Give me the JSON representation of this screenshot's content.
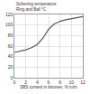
{
  "chart_data": {
    "type": "line",
    "y_label": "Softening temperature\nRing and Ball °C",
    "x_label": "SBS content in bitumen, % m/m",
    "x": [
      0,
      1,
      2,
      3,
      4,
      5,
      6,
      7,
      8,
      9,
      10,
      11,
      12
    ],
    "values": [
      48,
      50,
      53,
      57,
      63,
      75,
      92,
      102,
      107,
      110,
      112,
      114,
      116
    ],
    "color": "#555555",
    "xlim": [
      0,
      12
    ],
    "xticks": [
      0,
      2,
      4,
      6,
      8,
      10,
      12
    ],
    "ylim": [
      0,
      120
    ],
    "yticks": [
      0,
      20,
      40,
      60,
      80,
      100,
      120
    ],
    "grid": true
  }
}
